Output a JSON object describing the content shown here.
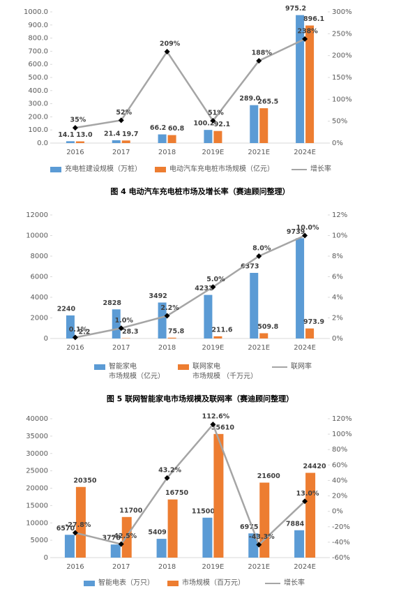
{
  "chart_data": [
    {
      "type": "bar",
      "caption": "图 4 电动汽车充电桩市场及增长率（赛迪顾问整理）",
      "categories": [
        "2016",
        "2017",
        "2018",
        "2019E",
        "2021E",
        "2024E"
      ],
      "ylim": [
        0,
        1000
      ],
      "yticks": [
        {
          "value": 0,
          "label": "0.0"
        },
        {
          "value": 100,
          "label": "100.0"
        },
        {
          "value": 200,
          "label": "200.0"
        },
        {
          "value": 300,
          "label": "300.0"
        },
        {
          "value": 400,
          "label": "400.0"
        },
        {
          "value": 500,
          "label": "500.0"
        },
        {
          "value": 600,
          "label": "600.0"
        },
        {
          "value": 700,
          "label": "700.0"
        },
        {
          "value": 800,
          "label": "800.0"
        },
        {
          "value": 900,
          "label": "900.0"
        },
        {
          "value": 1000,
          "label": "1000.0"
        }
      ],
      "y2lim": [
        0,
        300
      ],
      "y2ticks": [
        {
          "value": 0,
          "label": "0%"
        },
        {
          "value": 50,
          "label": "50%"
        },
        {
          "value": 100,
          "label": "100%"
        },
        {
          "value": 150,
          "label": "150%"
        },
        {
          "value": 200,
          "label": "200%"
        },
        {
          "value": 250,
          "label": "250%"
        },
        {
          "value": 300,
          "label": "300%"
        }
      ],
      "series": [
        {
          "name": "充电桩建设规模（万桩）",
          "color": "#5b9bd5",
          "values": [
            14.1,
            21.4,
            66.2,
            100.2,
            289.0,
            975.2
          ],
          "value_labels": [
            "14.1",
            "21.4",
            "66.2",
            "100.2",
            "289.0",
            "975.2"
          ]
        },
        {
          "name": "电动汽车充电桩市场规模（亿元）",
          "color": "#ed7d31",
          "values": [
            13.0,
            19.7,
            60.8,
            92.1,
            265.5,
            896.1
          ],
          "value_labels": [
            "13.0",
            "19.7",
            "60.8",
            "92.1",
            "265.5",
            "896.1"
          ]
        },
        {
          "name": "增长率",
          "color": "#a5a5a5",
          "axis": "y2",
          "values": [
            35,
            52,
            209,
            51,
            188,
            238
          ],
          "value_labels": [
            "35%",
            "52%",
            "209%",
            "51%",
            "188%",
            "238%"
          ]
        }
      ]
    },
    {
      "type": "bar",
      "caption": "图 5 联网智能家电市场规模及联网率（赛迪顾问整理）",
      "categories": [
        "2016",
        "2017",
        "2018",
        "2019E",
        "2021E",
        "2024E"
      ],
      "ylim": [
        0,
        12000
      ],
      "yticks": [
        0,
        2000,
        4000,
        6000,
        8000,
        10000,
        12000
      ],
      "y2lim": [
        0,
        12
      ],
      "y2ticks": [
        {
          "value": 0,
          "label": "0%"
        },
        {
          "value": 2,
          "label": "2%"
        },
        {
          "value": 4,
          "label": "4%"
        },
        {
          "value": 6,
          "label": "6%"
        },
        {
          "value": 8,
          "label": "8%"
        },
        {
          "value": 10,
          "label": "10%"
        },
        {
          "value": 12,
          "label": "12%"
        }
      ],
      "series": [
        {
          "name": "智能家电\n市场规模（亿元）",
          "color": "#5b9bd5",
          "values": [
            2240,
            2828,
            3492,
            4232,
            6373,
            9739
          ]
        },
        {
          "name": "联网家电\n市场规模 （千万元）",
          "color": "#ed7d31",
          "values": [
            2.2,
            28.3,
            75.8,
            211.6,
            509.8,
            973.9
          ]
        },
        {
          "name": "联网率",
          "color": "#a5a5a5",
          "axis": "y2",
          "values": [
            0.1,
            1.0,
            2.2,
            5.0,
            8.0,
            10.0
          ],
          "value_labels": [
            "0.1%",
            "1.0%",
            "2.2%",
            "5.0%",
            "8.0%",
            "10.0%"
          ]
        }
      ]
    },
    {
      "type": "bar",
      "categories": [
        "2016",
        "2017",
        "2018",
        "2019E",
        "2021E",
        "2024E"
      ],
      "ylim": [
        0,
        40000
      ],
      "yticks": [
        0,
        5000,
        10000,
        15000,
        20000,
        25000,
        30000,
        35000,
        40000
      ],
      "y2lim": [
        -60,
        120
      ],
      "y2ticks": [
        {
          "value": -60,
          "label": "-60%"
        },
        {
          "value": -40,
          "label": "-40%"
        },
        {
          "value": -20,
          "label": "-20%"
        },
        {
          "value": 0,
          "label": "0%"
        },
        {
          "value": 20,
          "label": "20%"
        },
        {
          "value": 40,
          "label": "40%"
        },
        {
          "value": 60,
          "label": "60%"
        },
        {
          "value": 80,
          "label": "80%"
        },
        {
          "value": 100,
          "label": "100%"
        },
        {
          "value": 120,
          "label": "120%"
        }
      ],
      "series": [
        {
          "name": "智能电表（万只）",
          "color": "#5b9bd5",
          "values": [
            6570,
            3778,
            5409,
            11500,
            6975,
            7884
          ]
        },
        {
          "name": "市场规模（百万元）",
          "color": "#ed7d31",
          "values": [
            20350,
            11700,
            16750,
            35610,
            21600,
            24420
          ]
        },
        {
          "name": "增长率",
          "color": "#a5a5a5",
          "axis": "y2",
          "values": [
            -27.8,
            -42.5,
            43.2,
            112.6,
            -43.3,
            13.0
          ],
          "value_labels": [
            "-27.8%",
            "-42.5%",
            "43.2%",
            "112.6%",
            "-43.3%",
            "13.0%"
          ]
        }
      ]
    }
  ]
}
